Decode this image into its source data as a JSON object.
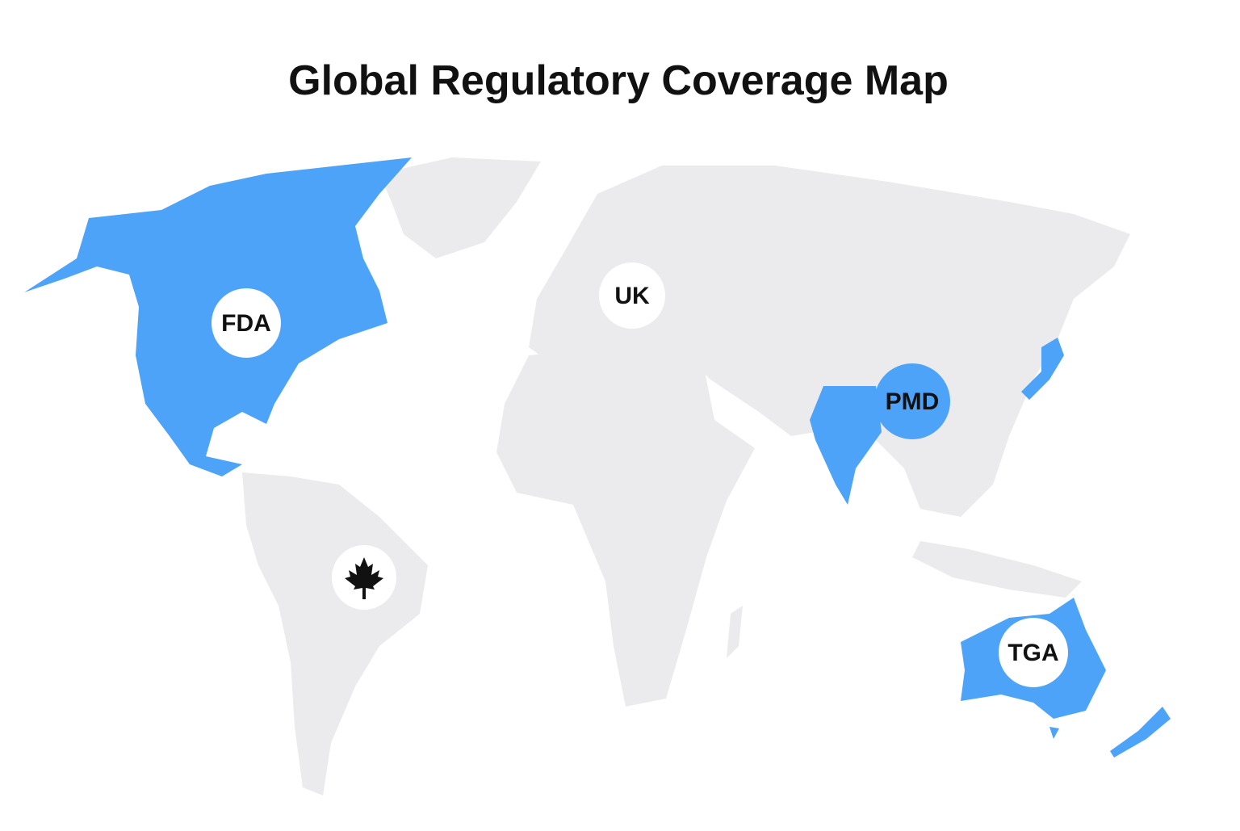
{
  "title": "Global Regulatory Coverage Map",
  "markers": [
    {
      "label": "FDA"
    },
    {
      "label": "UK"
    },
    {
      "label": "PMD"
    },
    {
      "label": "TGA"
    }
  ]
}
